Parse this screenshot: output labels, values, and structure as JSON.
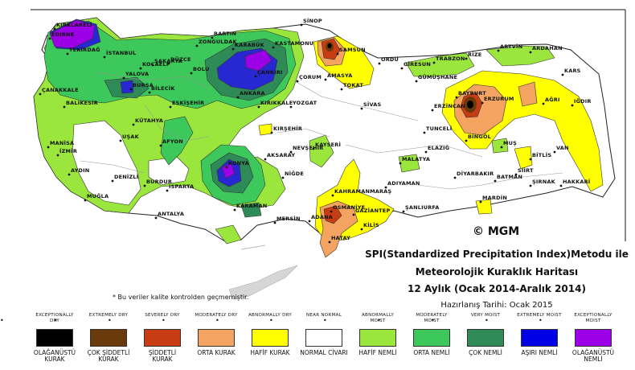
{
  "title": {
    "line1": "SPI(Standardized Precipitation Index)Metodu ile",
    "line2": "Meteorolojik Kuraklık Haritası",
    "line3": "12 Aylık (Ocak 2014-Aralık 2014)",
    "line4": "Hazırlanış Tarihi: Ocak 2015"
  },
  "logo": "© MGM",
  "note": "* Bu veriler kalite kontrolden geçmemiştir.",
  "colors": {
    "near_normal": "#ffffff",
    "abnormally_dry": "#ffff00",
    "moderately_dry": "#f4a460",
    "severely_dry": "#c83c14",
    "extremely_dry": "#6b3a0a",
    "exceptionally_dry": "#000000",
    "abnormally_moist": "#9be63c",
    "moderately_moist": "#3cc85a",
    "very_moist": "#2e8b57",
    "extremely_moist": "#0000e6",
    "exceptionally_moist": "#9b00e6"
  },
  "legend": [
    {
      "en": "EXCEPTIONALLY DRY",
      "tr": "OLAĞANÜSTÜ KURAK",
      "color": "#000000"
    },
    {
      "en": "EXTREMELY DRY",
      "tr": "ÇOK ŞİDDETLİ KURAK",
      "color": "#6b3a0a"
    },
    {
      "en": "SEVERELY DRY",
      "tr": "ŞİDDETLİ KURAK",
      "color": "#c83c14"
    },
    {
      "en": "MODERATELY DRY",
      "tr": "ORTA KURAK",
      "color": "#f4a460"
    },
    {
      "en": "ABNORMALLY DRY",
      "tr": "HAFİF KURAK",
      "color": "#ffff00"
    },
    {
      "en": "NEAR NORMAL",
      "tr": "NORMAL CİVARI",
      "color": "#ffffff"
    },
    {
      "en": "ABNORMALLY MOIST",
      "tr": "HAFİF NEMLİ",
      "color": "#9be63c"
    },
    {
      "en": "MODERATELY MOIST",
      "tr": "ORTA NEMLİ",
      "color": "#3cc85a"
    },
    {
      "en": "VERY MOIST",
      "tr": "ÇOK NEMLİ",
      "color": "#2e8b57"
    },
    {
      "en": "EXTREMELY MOIST",
      "tr": "AŞIRI NEMLİ",
      "color": "#0000e6"
    },
    {
      "en": "EXCEPTIONALLY MOIST",
      "tr": "OLAĞANÜSTÜ NEMLİ",
      "color": "#9b00e6"
    }
  ],
  "cities": {
    "edirne": "EDİRNE",
    "kirklareli": "KIRKLARELİ",
    "tekirdag": "TEKİRDAĞ",
    "istanbul": "İSTANBUL",
    "kocaeli": "KOCAELİ",
    "sakarya": "SAKARYA",
    "duzce": "DÜZCE",
    "bolu": "BOLU",
    "bartin": "BARTIN",
    "zonguldak": "ZONGULDAK",
    "karabuk": "KARABÜK",
    "kastamonu": "KASTAMONU",
    "sinop": "SİNOP",
    "samsun": "SAMSUN",
    "ordu": "ORDU",
    "giresun": "GİRESUN",
    "trabzon": "TRABZON",
    "rize": "RİZE",
    "artvin": "ARTVİN",
    "ardahan": "ARDAHAN",
    "kars": "KARS",
    "igdir": "IĞDIR",
    "agri": "AĞRI",
    "erzurum": "ERZURUM",
    "bayburt": "BAYBURT",
    "gumushane": "GÜMÜŞHANE",
    "erzincan": "ERZİNCAN",
    "tunceli": "TUNCELİ",
    "bingol": "BİNGÖL",
    "mus": "MUŞ",
    "bitlis": "BİTLİS",
    "van": "VAN",
    "hakkari": "HAKKARİ",
    "sirnak": "ŞIRNAK",
    "siirt": "SİİRT",
    "batman": "BATMAN",
    "mardin": "MARDİN",
    "diyarbakir": "DİYARBAKIR",
    "elazig": "ELAZIĞ",
    "malatya": "MALATYA",
    "adiyaman": "ADIYAMAN",
    "sanliurfa": "ŞANLIURFA",
    "gaziantep": "GAZİANTEP",
    "kilis": "KİLİS",
    "hatay": "HATAY",
    "osmaniye": "OSMANİYE",
    "adana": "ADANA",
    "mersin": "MERSİN",
    "kahramanmaras": "KAHRAMANMARAŞ",
    "kayseri": "KAYSERİ",
    "nigde": "NİĞDE",
    "aksaray": "AKSARAY",
    "nevsehir": "NEVŞEHİR",
    "kirsehir": "KIRŞEHİR",
    "yozgat": "YOZGAT",
    "corum": "ÇORUM",
    "amasya": "AMASYA",
    "tokat": "TOKAT",
    "sivas": "SİVAS",
    "cankiri": "ÇANKIRI",
    "ankara": "ANKARA",
    "kirikkale": "KIRIKKALE",
    "eskisehir": "ESKİŞEHİR",
    "bilecik": "BİLECİK",
    "bursa": "BURSA",
    "yalova": "YALOVA",
    "balikesir": "BALIKESİR",
    "canakkale": "ÇANAKKALE",
    "kutahya": "KÜTAHYA",
    "afyon": "AFYON",
    "usak": "UŞAK",
    "manisa": "MANİSA",
    "izmir": "İZMİR",
    "aydin": "AYDIN",
    "mugla": "MUĞLA",
    "denizli": "DENİZLİ",
    "burdur": "BURDUR",
    "isparta": "ISPARTA",
    "antalya": "ANTALYA",
    "konya": "KONYA",
    "karaman": "KARAMAN"
  }
}
